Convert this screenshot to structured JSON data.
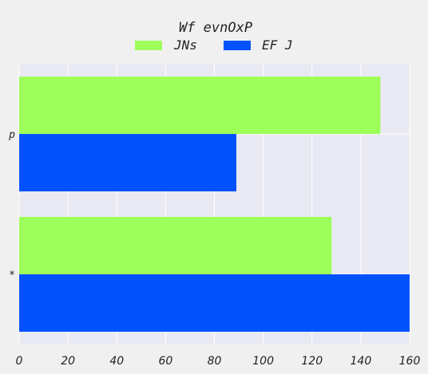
{
  "chart_data": {
    "type": "bar",
    "orientation": "horizontal",
    "title": "Wf evnOxP",
    "xlabel": "",
    "ylabel": "",
    "categories": [
      "p",
      "*"
    ],
    "series": [
      {
        "name": "JNs",
        "values": [
          148,
          128
        ]
      },
      {
        "name": "EF J",
        "values": [
          89,
          160
        ]
      }
    ],
    "xlim": [
      0,
      160
    ],
    "xticks": [
      0,
      20,
      40,
      60,
      80,
      100,
      120,
      140,
      160
    ],
    "grid": true,
    "legend_position": "top-center",
    "colors": {
      "series": [
        "#9efe5a",
        "#0252fe"
      ],
      "plot_background": "#e8e9f2",
      "figure_background": "#f0f0f0",
      "grid": "#ffffff",
      "text": "#222222"
    }
  }
}
